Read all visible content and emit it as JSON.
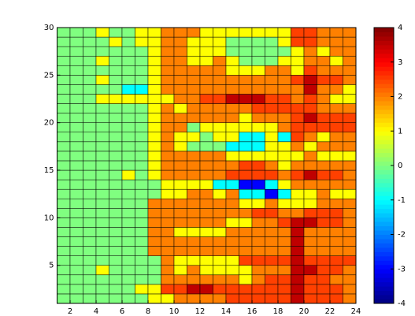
{
  "chart_data": {
    "type": "heatmap",
    "colormap": "jet",
    "cell_edges": true,
    "x": [
      1,
      2,
      3,
      4,
      5,
      6,
      7,
      8,
      9,
      10,
      11,
      12,
      13,
      14,
      15,
      16,
      17,
      18,
      19,
      20,
      21,
      22,
      23,
      24
    ],
    "y": [
      1,
      2,
      3,
      4,
      5,
      6,
      7,
      8,
      9,
      10,
      11,
      12,
      13,
      14,
      15,
      16,
      17,
      18,
      19,
      20,
      21,
      22,
      23,
      24,
      25,
      26,
      27,
      28,
      29,
      30
    ],
    "z": [
      [
        0,
        0,
        0,
        0,
        0,
        0,
        0,
        1,
        1,
        2,
        2,
        2,
        2,
        2.5,
        2.5,
        2.5,
        2.5,
        2.5,
        3.5,
        2.5,
        2.5,
        2.5,
        2
      ],
      [
        0,
        0,
        0,
        0,
        0,
        0,
        1,
        1,
        2.5,
        2.5,
        3.5,
        3.5,
        2.5,
        2.5,
        2.5,
        2.5,
        2.5,
        2.5,
        3.5,
        2.5,
        2.5,
        2.5,
        2
      ],
      [
        0,
        0,
        0,
        0,
        0,
        0,
        0,
        0,
        2,
        2,
        2,
        2,
        2,
        2,
        1,
        2,
        2.5,
        2.5,
        3.5,
        2.5,
        2.5,
        2,
        2
      ],
      [
        0,
        0,
        0,
        1,
        0,
        0,
        0,
        0,
        2,
        1,
        2,
        1,
        1,
        1,
        1,
        2,
        2,
        2,
        3.5,
        3.5,
        2.5,
        2.5,
        2
      ],
      [
        0,
        0,
        0,
        0,
        0,
        0,
        0,
        0,
        2,
        1,
        1,
        1,
        1,
        1,
        2.5,
        2.5,
        2.5,
        2.5,
        3.5,
        2.5,
        2.5,
        2.5,
        2.5
      ],
      [
        0,
        0,
        0,
        0,
        0,
        0,
        0,
        2,
        2,
        2,
        2,
        2,
        2,
        2,
        2,
        2,
        2,
        2,
        3.5,
        2,
        2,
        2,
        2
      ],
      [
        0,
        0,
        0,
        0,
        0,
        0,
        0,
        2,
        2,
        2,
        2,
        2,
        2,
        2,
        2,
        2,
        2,
        2,
        3.5,
        2,
        2,
        2,
        2
      ],
      [
        0,
        0,
        0,
        0,
        0,
        0,
        0,
        2,
        2,
        1,
        1,
        1,
        1,
        2,
        2,
        2,
        2,
        2,
        3.5,
        2,
        2,
        2,
        2
      ],
      [
        0,
        0,
        0,
        0,
        0,
        0,
        0,
        2,
        2,
        2,
        2,
        2,
        2,
        1,
        1,
        2,
        2,
        2.5,
        3.5,
        3.5,
        2.5,
        2.5,
        2
      ],
      [
        0,
        0,
        0,
        0,
        0,
        0,
        0,
        2,
        2,
        2,
        2,
        2,
        2,
        2,
        2,
        2.5,
        2.5,
        2,
        2,
        2.5,
        2.5,
        2.5,
        2
      ],
      [
        0,
        0,
        0,
        0,
        0,
        0,
        0,
        2,
        2,
        2,
        2,
        2,
        2,
        2,
        1,
        1,
        2,
        1,
        1,
        1,
        2,
        2,
        2
      ],
      [
        0,
        0,
        0,
        0,
        0,
        0,
        0,
        0,
        1,
        1,
        2,
        2,
        1,
        2,
        -1,
        -1,
        -3,
        -1,
        1,
        1,
        2,
        1,
        1
      ],
      [
        0,
        0,
        0,
        0,
        0,
        0,
        0,
        0,
        1,
        1,
        1,
        1,
        -1,
        -1,
        -3,
        -3,
        -1,
        1,
        2,
        2,
        2,
        2,
        2
      ],
      [
        0,
        0,
        0,
        0,
        0,
        1,
        0,
        1,
        2,
        2,
        2,
        2,
        2,
        2.5,
        2.5,
        2.5,
        2.5,
        2,
        2.5,
        3.5,
        2.5,
        2.5,
        2
      ],
      [
        0,
        0,
        0,
        0,
        0,
        0,
        0,
        1,
        2,
        2,
        2,
        2,
        2,
        2,
        2.5,
        2.5,
        2,
        1,
        2,
        2,
        2,
        2,
        2
      ],
      [
        0,
        0,
        0,
        0,
        0,
        0,
        0,
        1,
        2,
        2,
        2,
        2,
        2,
        1,
        1,
        1,
        1,
        1,
        1,
        2,
        1,
        1,
        1
      ],
      [
        0,
        0,
        0,
        0,
        0,
        0,
        0,
        1,
        2,
        1,
        0,
        0,
        0,
        -1,
        -1,
        -1,
        1,
        1,
        2,
        1,
        2,
        2,
        2
      ],
      [
        0,
        0,
        0,
        0,
        0,
        0,
        0,
        1,
        2,
        1,
        1,
        0,
        1,
        1,
        -1,
        -1,
        1,
        -1,
        2.5,
        2,
        1,
        2,
        2
      ],
      [
        0,
        0,
        0,
        0,
        0,
        0,
        0,
        1,
        2,
        2,
        0,
        1,
        1,
        1,
        1,
        1,
        1,
        2,
        2.5,
        2.5,
        2.5,
        2.5,
        2.5
      ],
      [
        0,
        0,
        0,
        0,
        0,
        0,
        0,
        1,
        2,
        2,
        2,
        2,
        2,
        2,
        1,
        2,
        2,
        2,
        2.5,
        3.5,
        2.5,
        2.5,
        2.5
      ],
      [
        0,
        0,
        0,
        0,
        0,
        0,
        0,
        1,
        2,
        1,
        2,
        2,
        2,
        2,
        2,
        2.5,
        2.5,
        2.5,
        2.5,
        2.5,
        2,
        2,
        2
      ],
      [
        0,
        0,
        0,
        1,
        1,
        1,
        1,
        1,
        1,
        2,
        2,
        2.5,
        2.5,
        3.5,
        3.5,
        3.5,
        2.5,
        2.5,
        2,
        2.5,
        2,
        1,
        1
      ],
      [
        0,
        0,
        0,
        0,
        0,
        -1,
        -1,
        1,
        2,
        2,
        2,
        2,
        2,
        2,
        2,
        2,
        2,
        2,
        2,
        3.5,
        2,
        2,
        1
      ],
      [
        0,
        0,
        0,
        1,
        0,
        0,
        0,
        1,
        2,
        2,
        2,
        2,
        2,
        2,
        2,
        2,
        2,
        2,
        2.5,
        3.5,
        2.5,
        2.5,
        2
      ],
      [
        0,
        0,
        0,
        0,
        0,
        0,
        0,
        1,
        2,
        2,
        2,
        2,
        2,
        1,
        1,
        1,
        2,
        2,
        1,
        2.5,
        2,
        2,
        2
      ],
      [
        0,
        0,
        0,
        1,
        0,
        0,
        0,
        1,
        2,
        2,
        1,
        1,
        2,
        1,
        0,
        0,
        0,
        1,
        1,
        2,
        2,
        1,
        2
      ],
      [
        0,
        0,
        0,
        0,
        0,
        0,
        0,
        1,
        2,
        2,
        1,
        1,
        1,
        0,
        0,
        0,
        0,
        0,
        1,
        2,
        1,
        2,
        2
      ],
      [
        0,
        0,
        0,
        0,
        1,
        0,
        1,
        1,
        2,
        2,
        1,
        1,
        1,
        0,
        0,
        0,
        0,
        1,
        2.5,
        2.5,
        2,
        2,
        2
      ],
      [
        0,
        0,
        0,
        1,
        0,
        0,
        1,
        1,
        2,
        2,
        2,
        1,
        1,
        1,
        1,
        1,
        1,
        1,
        2.5,
        2.5,
        2,
        2,
        2
      ]
    ],
    "xlim": [
      1,
      24
    ],
    "xticks": [
      2,
      4,
      6,
      8,
      10,
      12,
      14,
      16,
      18,
      20,
      22,
      24
    ],
    "ylim": [
      1,
      30
    ],
    "yticks": [
      5,
      10,
      15,
      20,
      25,
      30
    ],
    "clim": [
      -4,
      4
    ],
    "cticks": [
      -4,
      -3,
      -2,
      -1,
      0,
      1,
      2,
      3,
      4
    ]
  }
}
